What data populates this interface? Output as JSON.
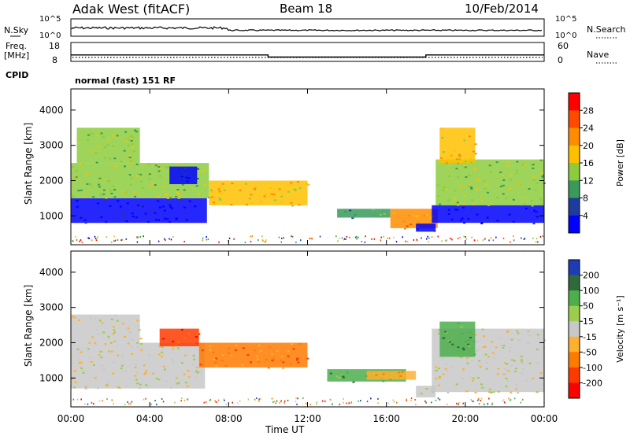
{
  "header": {
    "station": "Adak West (fitACF)",
    "beam": "Beam 18",
    "date": "10/Feb/2014"
  },
  "strips": {
    "nsky_label": "N.Sky",
    "nsky_ticks": [
      "10^5",
      "10^0"
    ],
    "nsearch_label": "N.Search",
    "nsearch_ticks": [
      "10^5",
      "10^0"
    ],
    "freq_label_1": "Freq.",
    "freq_label_2": "[MHz]",
    "freq_ticks": [
      "18",
      "8"
    ],
    "nave_label": "Nave",
    "nave_ticks": [
      "60",
      "0"
    ],
    "cpid_label": "CPID",
    "cpid_text": "normal (fast) 151 RF"
  },
  "chart_data": [
    {
      "type": "line",
      "name": "freq-strip",
      "x_hours": [
        0,
        10,
        10,
        18,
        18,
        24
      ],
      "freq_mhz": [
        11.4,
        11.4,
        10.3,
        10.3,
        11.4,
        11.4
      ],
      "ylim": [
        8,
        18
      ]
    },
    {
      "type": "heatmap",
      "name": "power",
      "xlabel": "Time UT",
      "ylabel": "Slant Range [km]",
      "xlim_hours": [
        0,
        24
      ],
      "ylim_km": [
        180,
        4600
      ],
      "x_ticks": [
        "00:00",
        "04:00",
        "08:00",
        "12:00",
        "16:00",
        "20:00",
        "00:00"
      ],
      "y_ticks": [
        "1000",
        "2000",
        "3000",
        "4000"
      ],
      "colorbar": {
        "label": "Power [dB]",
        "ticks": [
          "28",
          "24",
          "20",
          "16",
          "12",
          "8",
          "4"
        ],
        "colors": [
          "#ff0000",
          "#ff4a00",
          "#ff8c00",
          "#ffc000",
          "#8ccc3c",
          "#3a9a5a",
          "#1e3c9c",
          "#0000ff"
        ]
      },
      "regions": [
        {
          "t0": 0.0,
          "t1": 6.9,
          "r0": 800,
          "r1": 1500,
          "level": 7
        },
        {
          "t0": 0.0,
          "t1": 7.0,
          "r0": 1500,
          "r1": 2500,
          "level": 4
        },
        {
          "t0": 5.0,
          "t1": 6.4,
          "r0": 1900,
          "r1": 2400,
          "level": 7
        },
        {
          "t0": 0.3,
          "t1": 3.5,
          "r0": 2500,
          "r1": 3500,
          "level": 4
        },
        {
          "t0": 7.0,
          "t1": 12.0,
          "r0": 1300,
          "r1": 2000,
          "level": 3
        },
        {
          "t0": 13.5,
          "t1": 16.2,
          "r0": 950,
          "r1": 1200,
          "level": 5
        },
        {
          "t0": 16.2,
          "t1": 18.6,
          "r0": 650,
          "r1": 1200,
          "level": 2
        },
        {
          "t0": 17.5,
          "t1": 18.5,
          "r0": 550,
          "r1": 780,
          "level": 7
        },
        {
          "t0": 18.3,
          "t1": 24.0,
          "r0": 800,
          "r1": 1300,
          "level": 7
        },
        {
          "t0": 18.5,
          "t1": 24.0,
          "r0": 1300,
          "r1": 2600,
          "level": 4
        },
        {
          "t0": 18.7,
          "t1": 20.5,
          "r0": 2500,
          "r1": 3500,
          "level": 3
        }
      ]
    },
    {
      "type": "heatmap",
      "name": "velocity",
      "xlabel": "Time UT",
      "ylabel": "Slant Range [km]",
      "xlim_hours": [
        0,
        24
      ],
      "ylim_km": [
        180,
        4600
      ],
      "x_ticks": [
        "00:00",
        "04:00",
        "08:00",
        "12:00",
        "16:00",
        "20:00",
        "00:00"
      ],
      "y_ticks": [
        "1000",
        "2000",
        "3000",
        "4000"
      ],
      "colorbar": {
        "label": "Velocity [m s⁻¹]",
        "ticks": [
          "200",
          "100",
          "50",
          "15",
          "-15",
          "-50",
          "-100",
          "-200"
        ],
        "colors": [
          "#1e3cb4",
          "#2e6a3a",
          "#4caf4c",
          "#9ccd4c",
          "#c8c8c8",
          "#ffb02e",
          "#ff7a00",
          "#ff3a00",
          "#ff0000"
        ]
      },
      "regions": [
        {
          "t0": 0.0,
          "t1": 6.8,
          "r0": 700,
          "r1": 2000,
          "level": 4
        },
        {
          "t0": 0.0,
          "t1": 3.5,
          "r0": 2000,
          "r1": 2800,
          "level": 4
        },
        {
          "t0": 4.5,
          "t1": 6.5,
          "r0": 1900,
          "r1": 2400,
          "level": 7
        },
        {
          "t0": 6.5,
          "t1": 12.0,
          "r0": 1300,
          "r1": 2000,
          "level": 6
        },
        {
          "t0": 13.0,
          "t1": 17.0,
          "r0": 900,
          "r1": 1250,
          "level": 2
        },
        {
          "t0": 15.0,
          "t1": 17.5,
          "r0": 950,
          "r1": 1200,
          "level": 5
        },
        {
          "t0": 17.5,
          "t1": 18.5,
          "r0": 450,
          "r1": 780,
          "level": 4
        },
        {
          "t0": 18.3,
          "t1": 24.0,
          "r0": 600,
          "r1": 2400,
          "level": 4
        },
        {
          "t0": 18.7,
          "t1": 20.5,
          "r0": 1600,
          "r1": 2600,
          "level": 2
        }
      ]
    }
  ]
}
